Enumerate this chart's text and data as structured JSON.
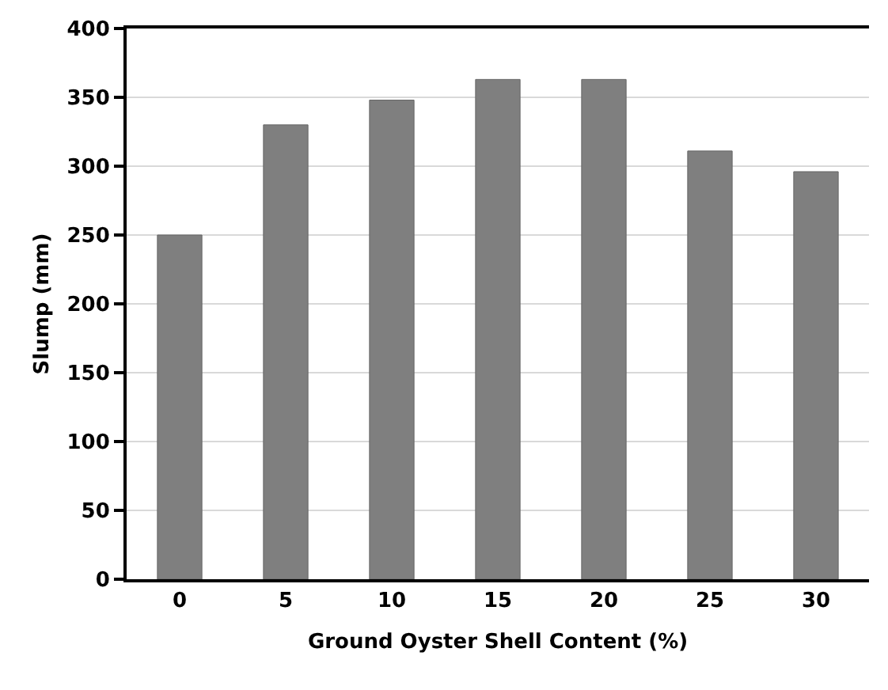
{
  "chart_data": {
    "type": "bar",
    "xlabel": "Ground Oyster Shell Content (%)",
    "ylabel": "Slump (mm)",
    "categories": [
      "0",
      "5",
      "10",
      "15",
      "20",
      "25",
      "30"
    ],
    "values": [
      250,
      330,
      348,
      363,
      363,
      311,
      296
    ],
    "color": "#7f7f7f",
    "ylim": [
      0,
      400
    ],
    "yticks": [
      0,
      50,
      100,
      150,
      200,
      250,
      300,
      350,
      400
    ],
    "grid": "y"
  }
}
